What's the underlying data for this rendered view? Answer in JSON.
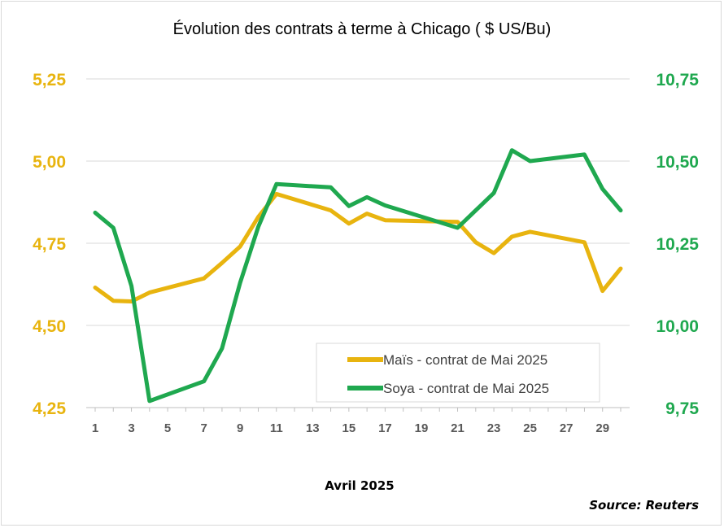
{
  "chart_data": {
    "type": "line",
    "title": "Évolution des contrats à terme à Chicago ( $ US/Bu)",
    "xlabel": "Avril 2025",
    "source": "Source: Reuters",
    "x_ticks": [
      "1",
      "3",
      "5",
      "7",
      "9",
      "11",
      "13",
      "15",
      "17",
      "19",
      "21",
      "23",
      "25",
      "27",
      "29"
    ],
    "x_range": [
      1,
      30
    ],
    "y_left": {
      "ticks": [
        "5,25",
        "5,00",
        "4,75",
        "4,50",
        "4,25"
      ],
      "ylim": [
        4.25,
        5.25
      ],
      "color": "#e8b40f"
    },
    "y_right": {
      "ticks": [
        "10,75",
        "10,50",
        "10,25",
        "10,00",
        "9,75"
      ],
      "ylim": [
        9.75,
        10.75
      ],
      "color": "#1fa84f"
    },
    "grid": true,
    "legend_position": "bottom-right",
    "series": [
      {
        "name": "Maïs - contrat de Mai 2025",
        "axis": "left",
        "color": "#e8b40f",
        "points": [
          [
            1,
            4.615
          ],
          [
            2,
            4.575
          ],
          [
            3,
            4.573
          ],
          [
            4,
            4.6
          ],
          [
            7,
            4.643
          ],
          [
            8,
            4.69
          ],
          [
            9,
            4.74
          ],
          [
            10,
            4.83
          ],
          [
            11,
            4.9
          ],
          [
            14,
            4.85
          ],
          [
            15,
            4.81
          ],
          [
            16,
            4.84
          ],
          [
            17,
            4.82
          ],
          [
            21,
            4.815
          ],
          [
            22,
            4.753
          ],
          [
            23,
            4.72
          ],
          [
            24,
            4.77
          ],
          [
            25,
            4.785
          ],
          [
            28,
            4.753
          ],
          [
            29,
            4.605
          ],
          [
            30,
            4.673
          ]
        ]
      },
      {
        "name": "Soya - contrat de Mai 2025",
        "axis": "right",
        "color": "#1fa84f",
        "points": [
          [
            1,
            10.343
          ],
          [
            2,
            10.297
          ],
          [
            3,
            10.12
          ],
          [
            4,
            9.77
          ],
          [
            7,
            9.83
          ],
          [
            8,
            9.93
          ],
          [
            9,
            10.13
          ],
          [
            10,
            10.3
          ],
          [
            11,
            10.43
          ],
          [
            14,
            10.42
          ],
          [
            15,
            10.363
          ],
          [
            16,
            10.39
          ],
          [
            17,
            10.365
          ],
          [
            21,
            10.297
          ],
          [
            22,
            10.35
          ],
          [
            23,
            10.403
          ],
          [
            24,
            10.533
          ],
          [
            25,
            10.5
          ],
          [
            28,
            10.52
          ],
          [
            29,
            10.415
          ],
          [
            30,
            10.35
          ]
        ]
      }
    ]
  }
}
